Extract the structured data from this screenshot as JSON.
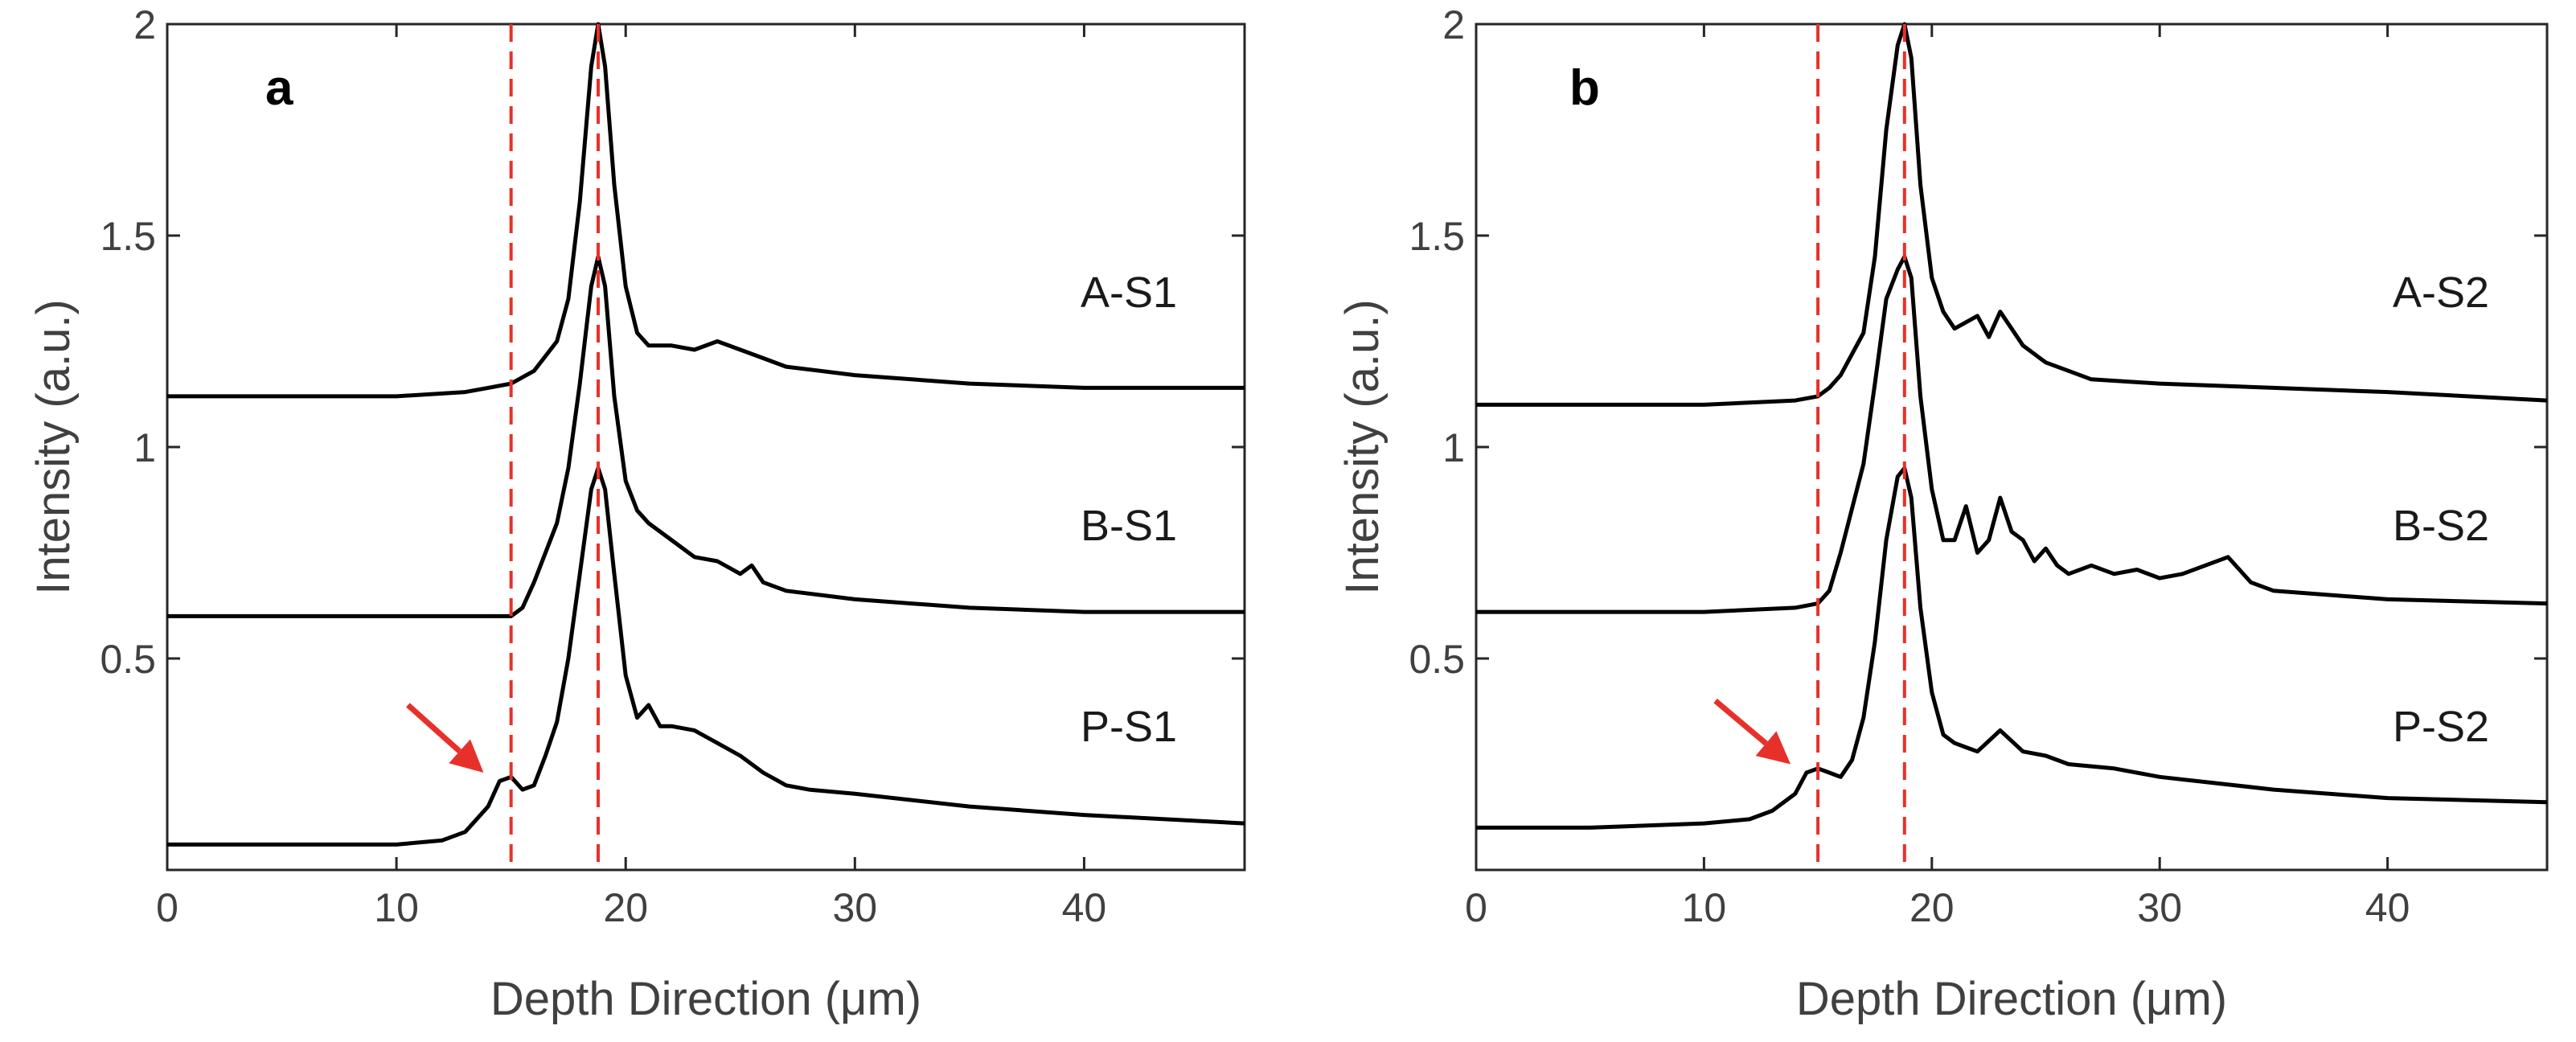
{
  "chart_data": [
    {
      "type": "line",
      "panel_label": "a",
      "xlabel": "Depth Direction (μm)",
      "ylabel": "Intensity (a.u.)",
      "xlim": [
        0,
        47
      ],
      "ylim": [
        0.0,
        2.0
      ],
      "xticks": [
        0,
        10,
        20,
        30,
        40
      ],
      "xtick_labels": [
        "0",
        "10",
        "20",
        "30",
        "40"
      ],
      "yticks": [
        0.5,
        1.0,
        1.5,
        2.0
      ],
      "ytick_labels": [
        "0.5",
        "1",
        "1.5",
        "2"
      ],
      "reference_lines": [
        15.0,
        18.8
      ],
      "reference_line_color": "#e8302a",
      "arrow": {
        "from": [
          10.5,
          0.39
        ],
        "to": [
          13.8,
          0.23
        ],
        "color": "#e8302a"
      },
      "series": [
        {
          "name": "A-S1",
          "x": [
            0,
            5,
            10,
            13,
            14,
            15,
            16,
            17,
            17.5,
            18,
            18.5,
            18.8,
            19.1,
            19.5,
            20,
            20.5,
            21,
            22,
            23,
            24,
            25,
            26,
            27,
            30,
            35,
            40,
            47
          ],
          "y": [
            1.12,
            1.12,
            1.12,
            1.13,
            1.14,
            1.15,
            1.18,
            1.25,
            1.35,
            1.58,
            1.9,
            2.0,
            1.9,
            1.62,
            1.38,
            1.27,
            1.24,
            1.24,
            1.23,
            1.25,
            1.23,
            1.21,
            1.19,
            1.17,
            1.15,
            1.14,
            1.14
          ]
        },
        {
          "name": "B-S1",
          "x": [
            0,
            5,
            10,
            14,
            15,
            15.5,
            16,
            17,
            17.5,
            18,
            18.5,
            18.8,
            19.1,
            19.5,
            20,
            20.5,
            21,
            22,
            23,
            24,
            25,
            25.5,
            26,
            27,
            30,
            35,
            40,
            47
          ],
          "y": [
            0.6,
            0.6,
            0.6,
            0.6,
            0.6,
            0.62,
            0.68,
            0.82,
            0.95,
            1.15,
            1.38,
            1.45,
            1.38,
            1.12,
            0.92,
            0.85,
            0.82,
            0.78,
            0.74,
            0.73,
            0.7,
            0.72,
            0.68,
            0.66,
            0.64,
            0.62,
            0.61,
            0.61
          ]
        },
        {
          "name": "P-S1",
          "x": [
            0,
            5,
            10,
            12,
            13,
            14,
            14.5,
            15,
            15.5,
            16,
            16.5,
            17,
            17.5,
            18,
            18.5,
            18.8,
            19.1,
            19.5,
            20,
            20.5,
            21,
            21.5,
            22,
            23,
            24,
            25,
            26,
            27,
            28,
            30,
            35,
            40,
            47
          ],
          "y": [
            0.06,
            0.06,
            0.06,
            0.07,
            0.09,
            0.15,
            0.21,
            0.22,
            0.19,
            0.2,
            0.27,
            0.35,
            0.5,
            0.7,
            0.9,
            0.95,
            0.9,
            0.7,
            0.46,
            0.36,
            0.39,
            0.34,
            0.34,
            0.33,
            0.3,
            0.27,
            0.23,
            0.2,
            0.19,
            0.18,
            0.15,
            0.13,
            0.11
          ]
        }
      ],
      "series_label_color": "#1a1a1a"
    },
    {
      "type": "line",
      "panel_label": "b",
      "xlabel": "Depth Direction (μm)",
      "ylabel": "Intensity (a.u.)",
      "xlim": [
        0,
        47
      ],
      "ylim": [
        0.0,
        2.0
      ],
      "xticks": [
        0,
        10,
        20,
        30,
        40
      ],
      "xtick_labels": [
        "0",
        "10",
        "20",
        "30",
        "40"
      ],
      "yticks": [
        0.5,
        1.0,
        1.5,
        2.0
      ],
      "ytick_labels": [
        "0.5",
        "1",
        "1.5",
        "2"
      ],
      "reference_lines": [
        15.0,
        18.8
      ],
      "reference_line_color": "#e8302a",
      "arrow": {
        "from": [
          10.5,
          0.4
        ],
        "to": [
          13.8,
          0.25
        ],
        "color": "#e8302a"
      },
      "series": [
        {
          "name": "A-S2",
          "x": [
            0,
            5,
            10,
            14,
            15,
            15.5,
            16,
            17,
            17.5,
            18,
            18.5,
            18.8,
            19.1,
            19.5,
            20,
            20.5,
            21,
            22,
            22.5,
            23,
            23.5,
            24,
            25,
            26,
            27,
            30,
            35,
            40,
            47
          ],
          "y": [
            1.1,
            1.1,
            1.1,
            1.11,
            1.12,
            1.14,
            1.17,
            1.27,
            1.45,
            1.75,
            1.95,
            2.0,
            1.92,
            1.62,
            1.4,
            1.32,
            1.28,
            1.31,
            1.26,
            1.32,
            1.28,
            1.24,
            1.2,
            1.18,
            1.16,
            1.15,
            1.14,
            1.13,
            1.11
          ]
        },
        {
          "name": "B-S2",
          "x": [
            0,
            5,
            10,
            14,
            15,
            15.5,
            16,
            17,
            17.5,
            18,
            18.5,
            18.8,
            19.1,
            19.5,
            20,
            20.5,
            21,
            21.5,
            22,
            22.5,
            23,
            23.5,
            24,
            24.5,
            25,
            25.5,
            26,
            27,
            28,
            29,
            30,
            31,
            32,
            33,
            34,
            35,
            40,
            47
          ],
          "y": [
            0.61,
            0.61,
            0.61,
            0.62,
            0.63,
            0.66,
            0.75,
            0.96,
            1.15,
            1.35,
            1.42,
            1.45,
            1.4,
            1.12,
            0.9,
            0.78,
            0.78,
            0.86,
            0.75,
            0.78,
            0.88,
            0.8,
            0.78,
            0.73,
            0.76,
            0.72,
            0.7,
            0.72,
            0.7,
            0.71,
            0.69,
            0.7,
            0.72,
            0.74,
            0.68,
            0.66,
            0.64,
            0.63
          ]
        },
        {
          "name": "P-S2",
          "x": [
            0,
            5,
            10,
            12,
            13,
            14,
            14.5,
            15,
            15.5,
            16,
            16.5,
            17,
            17.5,
            18,
            18.5,
            18.8,
            19.1,
            19.5,
            20,
            20.5,
            21,
            21.5,
            22,
            23,
            24,
            25,
            26,
            28,
            30,
            35,
            40,
            47
          ],
          "y": [
            0.1,
            0.1,
            0.11,
            0.12,
            0.14,
            0.18,
            0.23,
            0.24,
            0.23,
            0.22,
            0.26,
            0.36,
            0.54,
            0.78,
            0.93,
            0.95,
            0.88,
            0.62,
            0.42,
            0.32,
            0.3,
            0.29,
            0.28,
            0.33,
            0.28,
            0.27,
            0.25,
            0.24,
            0.22,
            0.19,
            0.17,
            0.16
          ]
        }
      ],
      "series_label_color": "#1a1a1a"
    }
  ]
}
